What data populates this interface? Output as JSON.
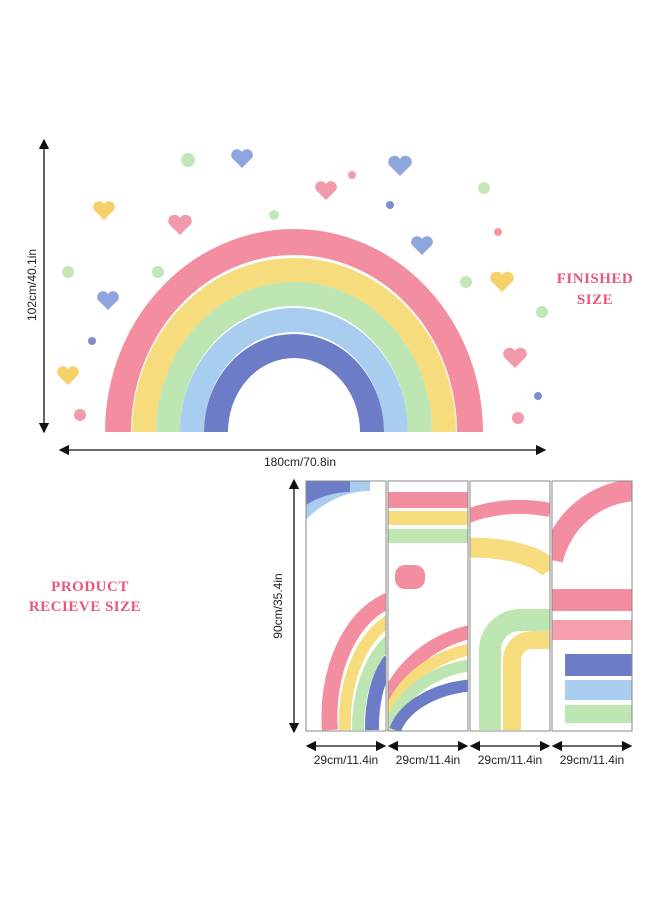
{
  "finished": {
    "height": "102cm/40.1in",
    "width": "180cm/70.8in",
    "label": [
      "FINISHED",
      "SIZE"
    ]
  },
  "product": {
    "label": [
      "PRODUCT",
      "RECIEVE SIZE"
    ],
    "height": "90cm/35.4in",
    "panel_widths": [
      "29cm/11.4in",
      "29cm/11.4in",
      "29cm/11.4in",
      "29cm/11.4in"
    ]
  }
}
